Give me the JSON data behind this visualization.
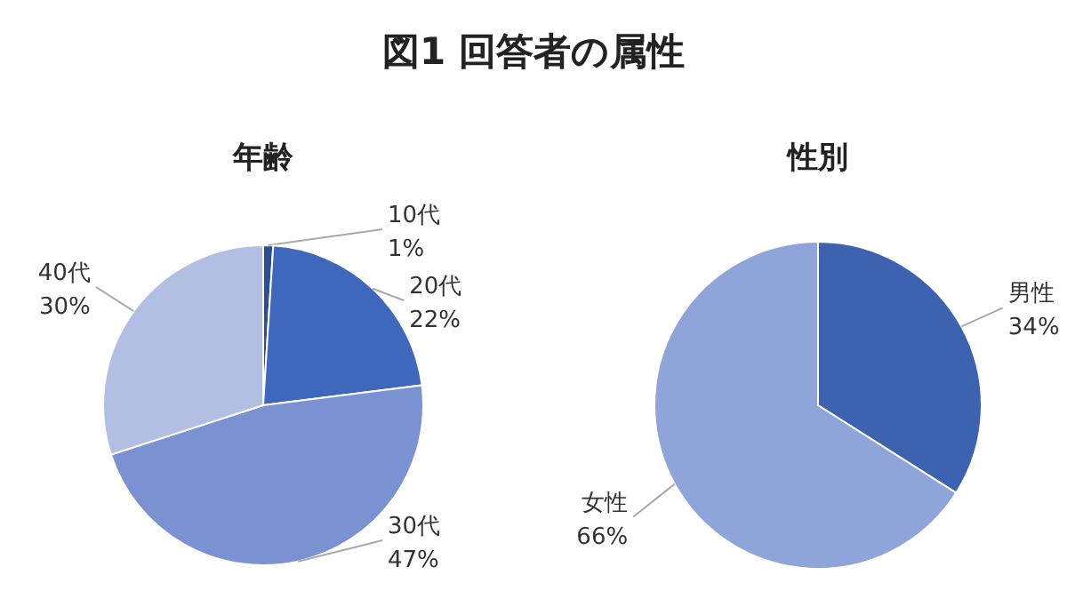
{
  "chart_data": [
    {
      "type": "other",
      "title": "図1 回答者の属性"
    },
    {
      "type": "pie",
      "title": "年齢",
      "categories": [
        "10代",
        "20代",
        "30代",
        "40代"
      ],
      "values": [
        1,
        22,
        47,
        30
      ],
      "value_labels": [
        "1%",
        "22%",
        "47%",
        "30%"
      ],
      "colors": [
        "#2e4f8f",
        "#3f68bd",
        "#7a92d2",
        "#b3bfe2"
      ],
      "legend": false
    },
    {
      "type": "pie",
      "title": "性別",
      "categories": [
        "男性",
        "女性"
      ],
      "values": [
        34,
        66
      ],
      "value_labels": [
        "34%",
        "66%"
      ],
      "colors": [
        "#3c62b0",
        "#8fa4d8"
      ],
      "legend": false
    }
  ]
}
